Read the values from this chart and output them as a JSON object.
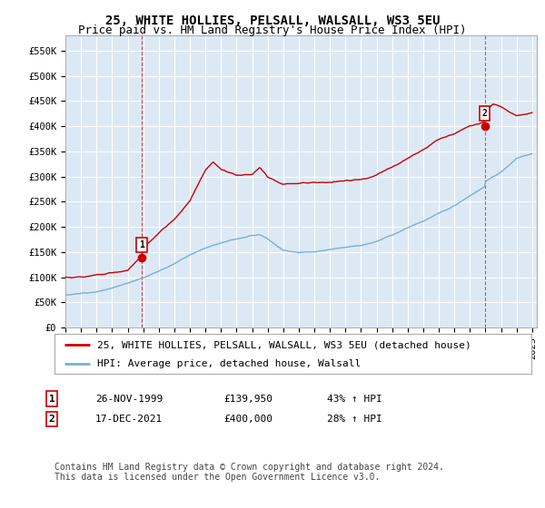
{
  "title": "25, WHITE HOLLIES, PELSALL, WALSALL, WS3 5EU",
  "subtitle": "Price paid vs. HM Land Registry's House Price Index (HPI)",
  "ylim": [
    0,
    580000
  ],
  "yticks": [
    0,
    50000,
    100000,
    150000,
    200000,
    250000,
    300000,
    350000,
    400000,
    450000,
    500000,
    550000
  ],
  "ytick_labels": [
    "£0",
    "£50K",
    "£100K",
    "£150K",
    "£200K",
    "£250K",
    "£300K",
    "£350K",
    "£400K",
    "£450K",
    "£500K",
    "£550K"
  ],
  "xtick_years": [
    1995,
    1996,
    1997,
    1998,
    1999,
    2000,
    2001,
    2002,
    2003,
    2004,
    2005,
    2006,
    2007,
    2008,
    2009,
    2010,
    2011,
    2012,
    2013,
    2014,
    2015,
    2016,
    2017,
    2018,
    2019,
    2020,
    2021,
    2022,
    2023,
    2024,
    2025
  ],
  "red_color": "#cc0000",
  "blue_color": "#7aafd4",
  "chart_bg": "#dce9f5",
  "background_color": "#ffffff",
  "grid_color": "#ffffff",
  "sale1_year": 1999.9,
  "sale1_value": 139950,
  "sale2_year": 2021.95,
  "sale2_value": 400000,
  "legend_line1": "25, WHITE HOLLIES, PELSALL, WALSALL, WS3 5EU (detached house)",
  "legend_line2": "HPI: Average price, detached house, Walsall",
  "table_row1": [
    "1",
    "26-NOV-1999",
    "£139,950",
    "43% ↑ HPI"
  ],
  "table_row2": [
    "2",
    "17-DEC-2021",
    "£400,000",
    "28% ↑ HPI"
  ],
  "footnote": "Contains HM Land Registry data © Crown copyright and database right 2024.\nThis data is licensed under the Open Government Licence v3.0.",
  "title_fontsize": 10,
  "subtitle_fontsize": 9,
  "tick_fontsize": 7.5,
  "legend_fontsize": 8,
  "table_fontsize": 8,
  "footnote_fontsize": 7,
  "hpi_anchors_x": [
    1995,
    1996,
    1997,
    1998,
    1999,
    2000,
    2001,
    2002,
    2003,
    2004,
    2005,
    2006,
    2007,
    2007.5,
    2008,
    2009,
    2010,
    2011,
    2012,
    2013,
    2014,
    2015,
    2016,
    2017,
    2018,
    2019,
    2020,
    2021,
    2021.95,
    2022,
    2023,
    2024,
    2025
  ],
  "hpi_anchors_y": [
    65000,
    68000,
    73000,
    80000,
    90000,
    102000,
    115000,
    130000,
    148000,
    163000,
    175000,
    183000,
    190000,
    192000,
    185000,
    162000,
    158000,
    158000,
    162000,
    165000,
    170000,
    178000,
    190000,
    205000,
    218000,
    235000,
    248000,
    268000,
    285000,
    295000,
    315000,
    342000,
    352000
  ],
  "prop_anchors_x": [
    1995,
    1996,
    1997,
    1998,
    1999,
    1999.9,
    2000,
    2001,
    2002,
    2003,
    2004,
    2004.5,
    2005,
    2006,
    2007,
    2007.5,
    2008,
    2009,
    2010,
    2011,
    2012,
    2013,
    2014,
    2015,
    2016,
    2017,
    2018,
    2019,
    2020,
    2021,
    2021.95,
    2022,
    2022.5,
    2023,
    2024,
    2025
  ],
  "prop_anchors_y": [
    100000,
    102000,
    105000,
    108000,
    112000,
    139950,
    158000,
    185000,
    210000,
    250000,
    310000,
    325000,
    308000,
    295000,
    295000,
    310000,
    290000,
    275000,
    275000,
    278000,
    278000,
    282000,
    285000,
    295000,
    310000,
    330000,
    345000,
    365000,
    375000,
    390000,
    400000,
    420000,
    435000,
    430000,
    415000,
    420000
  ]
}
